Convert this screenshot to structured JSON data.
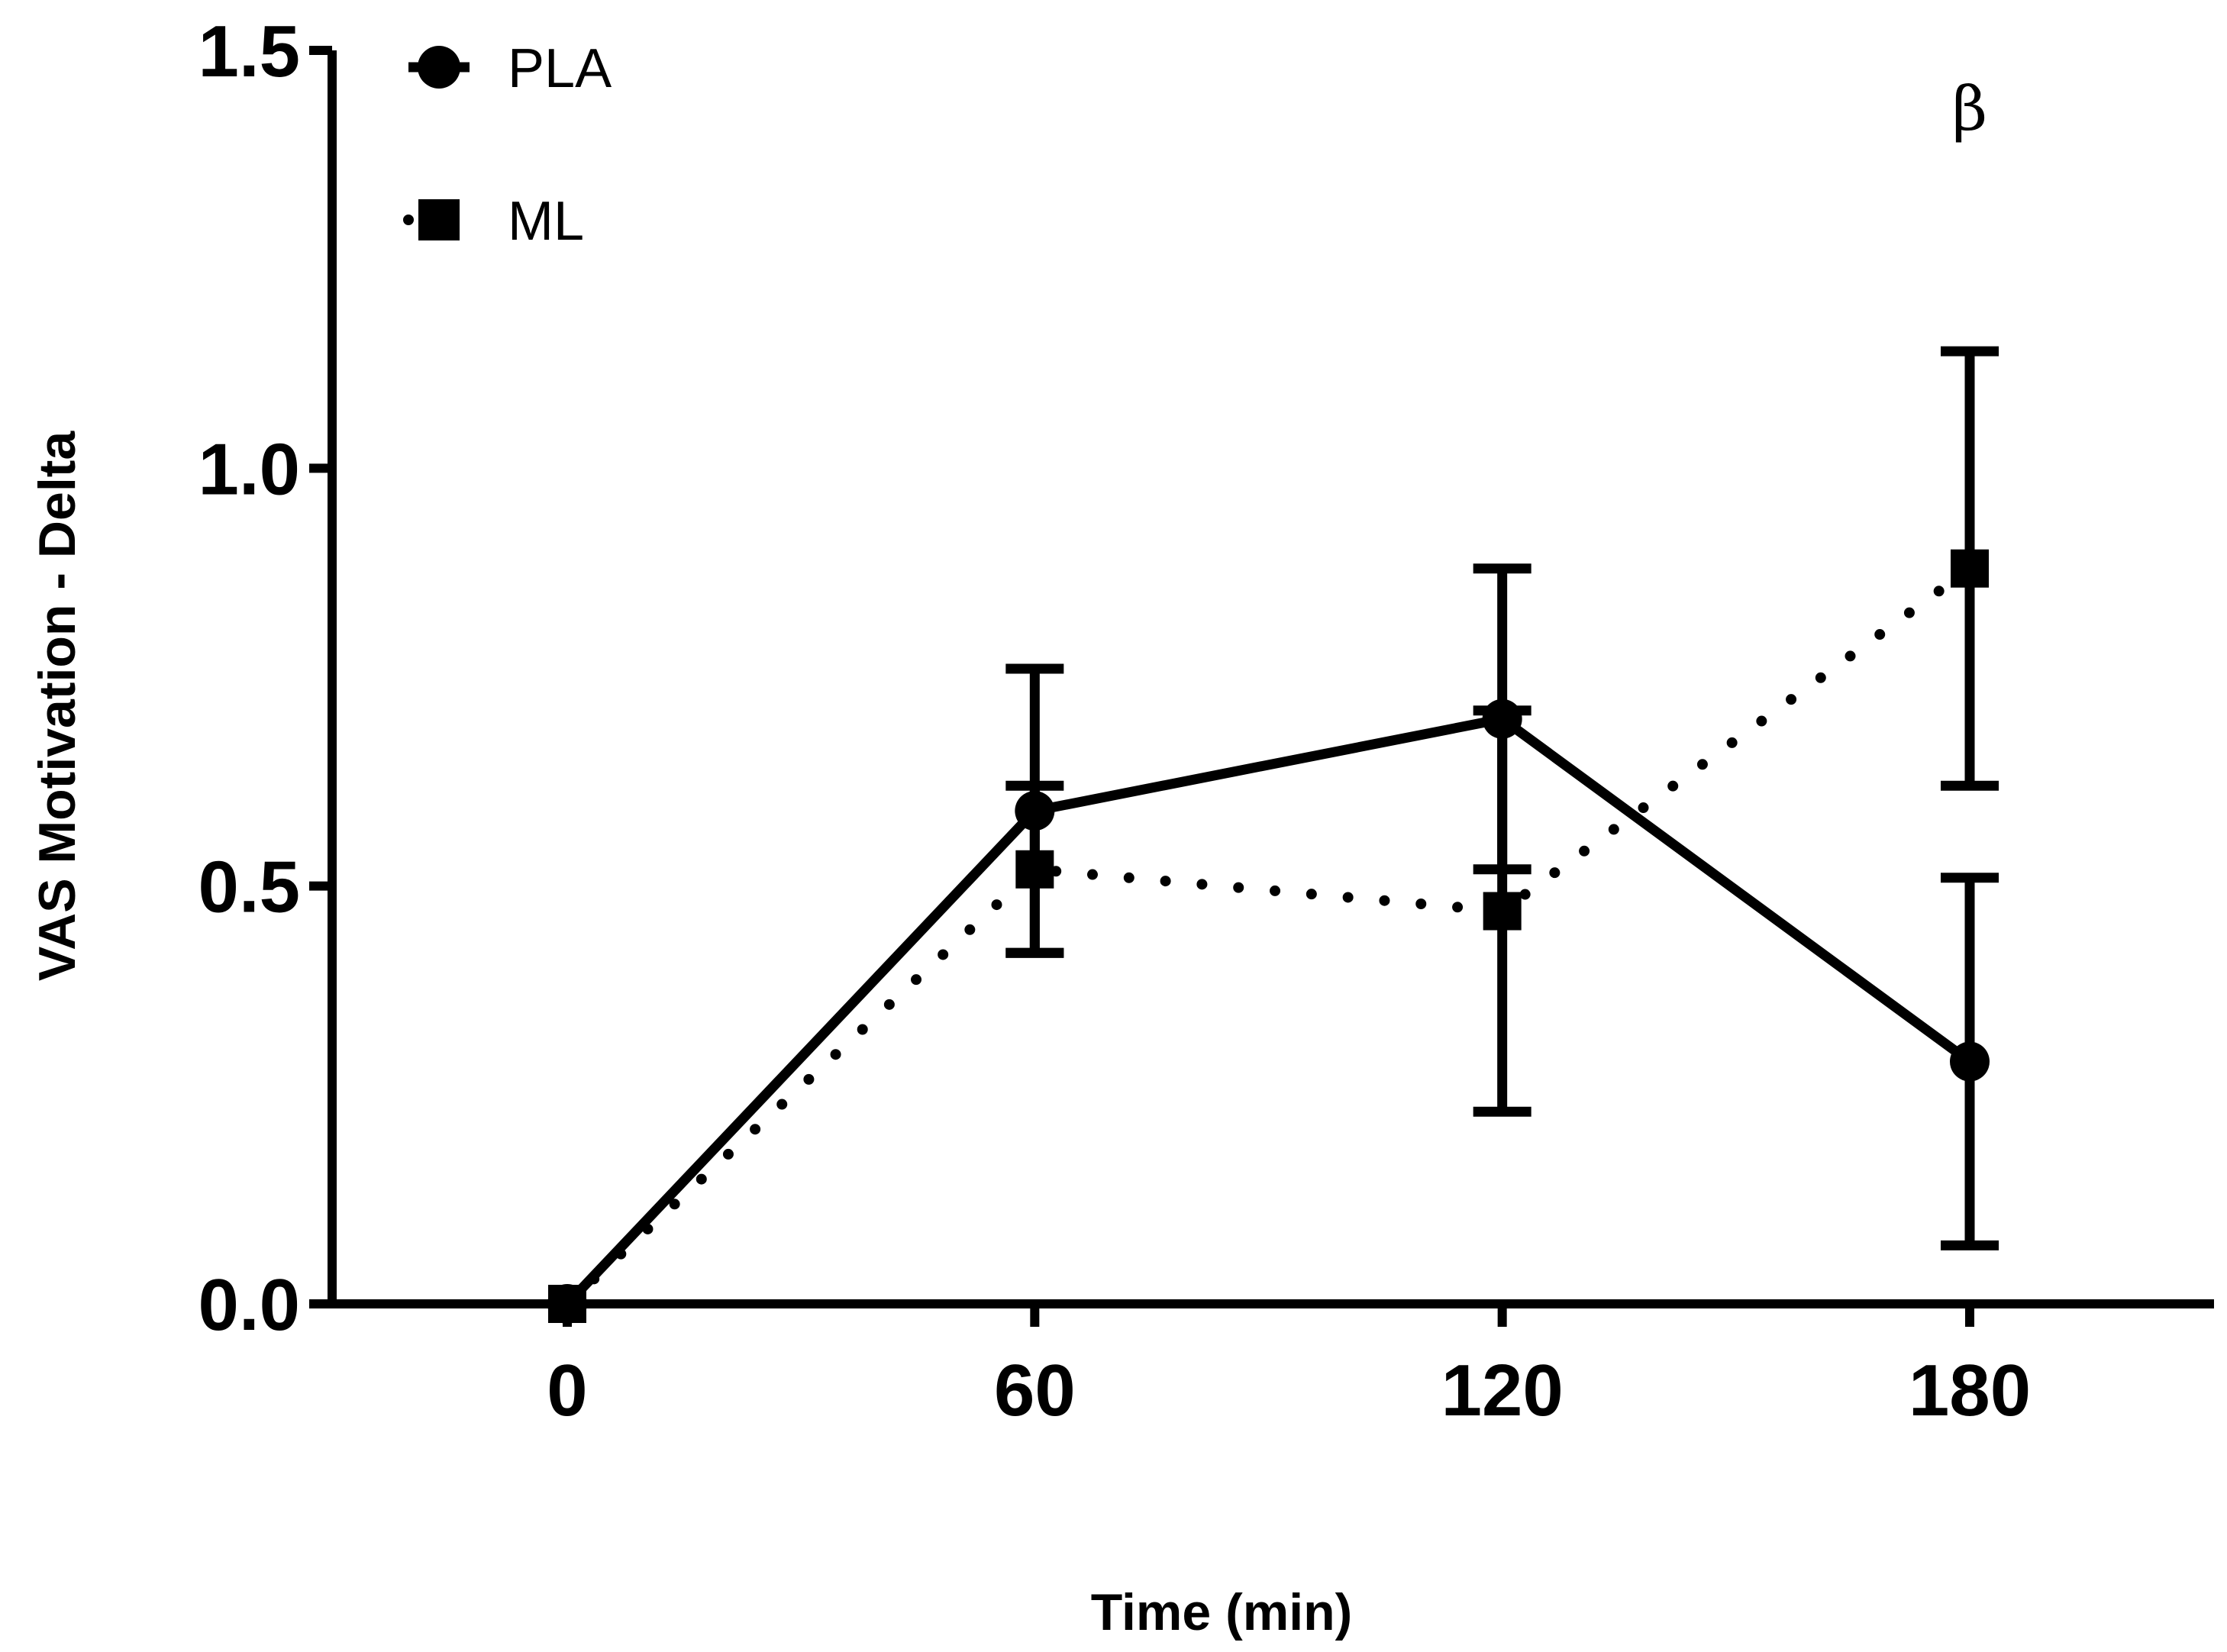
{
  "chart_data": {
    "type": "line",
    "title": "",
    "xlabel": "Time (min)",
    "ylabel": "VAS Motivation - Delta",
    "x": [
      0,
      60,
      120,
      180
    ],
    "x_tick_labels": [
      "0",
      "60",
      "120",
      "180"
    ],
    "y_ticks": [
      0.0,
      0.5,
      1.0,
      1.5
    ],
    "y_tick_labels": [
      "0.0",
      "0.5",
      "1.0",
      "1.5"
    ],
    "xlim": [
      -30,
      210
    ],
    "ylim": [
      0,
      1.5
    ],
    "grid": false,
    "legend_position": "top-left",
    "series": [
      {
        "name": "PLA",
        "marker": "circle",
        "line_style": "solid",
        "values": [
          0.0,
          0.59,
          0.7,
          0.29
        ],
        "error": [
          0.0,
          0.17,
          0.18,
          0.22
        ]
      },
      {
        "name": "ML",
        "marker": "square",
        "line_style": "dotted",
        "values": [
          0.0,
          0.52,
          0.47,
          0.88
        ],
        "error": [
          0.0,
          0.1,
          0.24,
          0.26
        ]
      }
    ],
    "annotations": [
      {
        "text": "β",
        "x": 180
      }
    ],
    "colors": {
      "line": "#000000",
      "background": "#ffffff"
    }
  }
}
